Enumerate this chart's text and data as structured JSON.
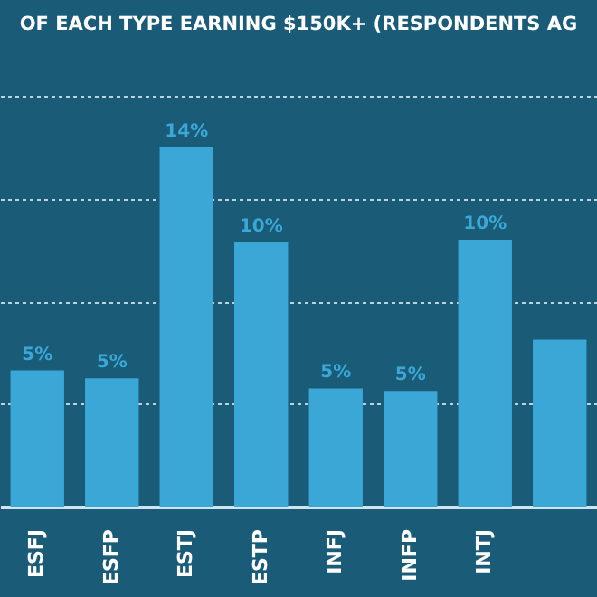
{
  "chart_data": {
    "type": "bar",
    "title": "OF EACH TYPE EARNING $150K+ (RESPONDENTS AG",
    "categories": [
      "ESFJ",
      "ESFP",
      "ESTJ",
      "ESTP",
      "INFJ",
      "INFP",
      "INTJ",
      null
    ],
    "values": [
      5.3,
      5.0,
      14.0,
      10.3,
      4.6,
      4.5,
      10.4,
      6.5
    ],
    "value_labels": [
      "5%",
      "5%",
      "14%",
      "10%",
      "5%",
      "5%",
      "10%",
      null
    ],
    "color": "#3ba7d6",
    "ylim": [
      0,
      16
    ],
    "yticks": [
      {
        "value": 4,
        "label": null
      },
      {
        "value": 8,
        "label": null
      },
      {
        "value": 12,
        "label": null
      },
      {
        "value": 16,
        "label": null
      }
    ],
    "grid": "y",
    "tick_labels": "x"
  }
}
